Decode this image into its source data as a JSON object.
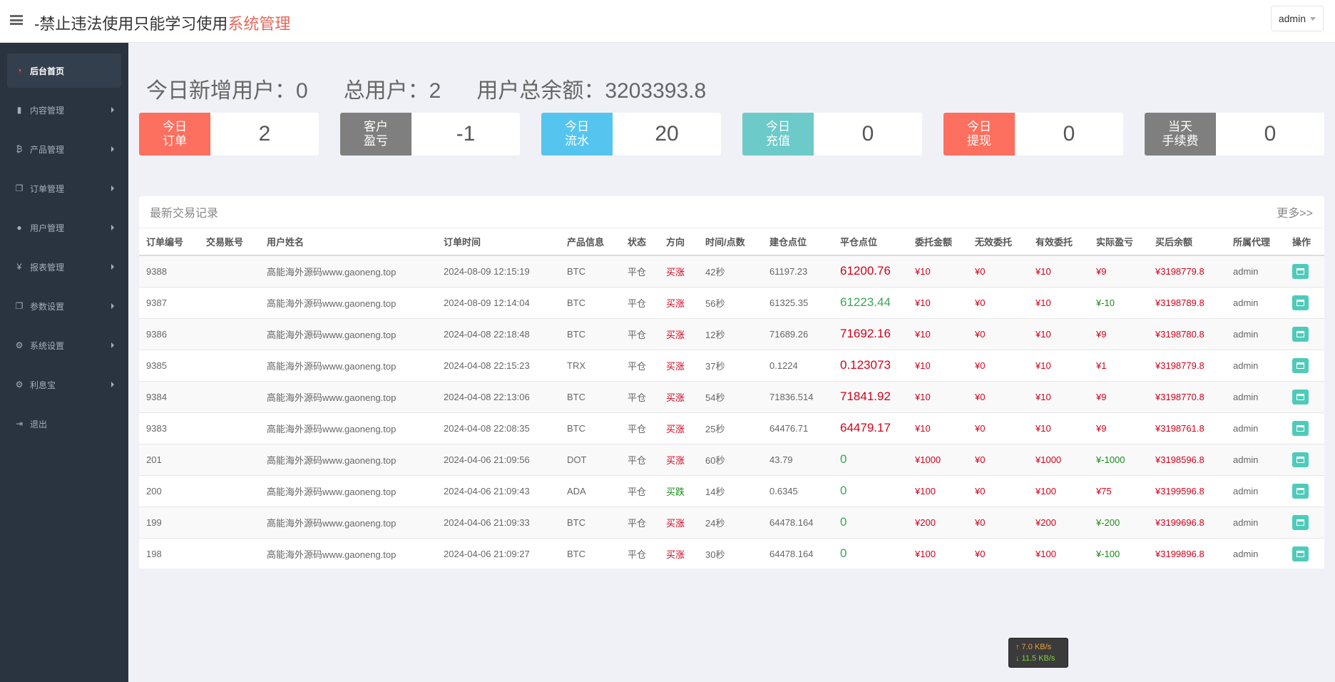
{
  "header": {
    "title_prefix": "-禁止违法使用只能学习使用",
    "title_accent": "系统管理",
    "user": "admin"
  },
  "sidebar": {
    "items": [
      {
        "label": "后台首页",
        "icon": "dashboard-icon",
        "glyph": "◔",
        "active": true,
        "arrow": false
      },
      {
        "label": "内容管理",
        "icon": "book-icon",
        "glyph": "▮",
        "arrow": true
      },
      {
        "label": "产品管理",
        "icon": "bitcoin-icon",
        "glyph": "₿",
        "arrow": true
      },
      {
        "label": "订单管理",
        "icon": "copy-icon",
        "glyph": "❐",
        "arrow": true
      },
      {
        "label": "用户管理",
        "icon": "user-icon",
        "glyph": "●",
        "arrow": true
      },
      {
        "label": "报表管理",
        "icon": "yen-icon",
        "glyph": "¥",
        "arrow": true
      },
      {
        "label": "参数设置",
        "icon": "copy-icon",
        "glyph": "❐",
        "arrow": true
      },
      {
        "label": "系统设置",
        "icon": "gears-icon",
        "glyph": "⚙",
        "arrow": true
      },
      {
        "label": "利息宝",
        "icon": "gears-icon",
        "glyph": "⚙",
        "arrow": true
      },
      {
        "label": "退出",
        "icon": "sign-out-icon",
        "glyph": "⇥",
        "arrow": false
      }
    ]
  },
  "stats": {
    "new_users": "今日新增用户：0",
    "total_users": "总用户：2",
    "total_balance": "用户总余额：3203393.8"
  },
  "cards": [
    {
      "label": "今日\n订单",
      "value": "2",
      "color": "#fd6f5e"
    },
    {
      "label": "客户\n盈亏",
      "value": "-1",
      "color": "#7f7f7f"
    },
    {
      "label": "今日\n流水",
      "value": "20",
      "color": "#55c5f0"
    },
    {
      "label": "今日\n充值",
      "value": "0",
      "color": "#6ccac9"
    },
    {
      "label": "今日\n提现",
      "value": "0",
      "color": "#fd6f5e"
    },
    {
      "label": "当天\n手续费",
      "value": "0",
      "color": "#7f7f7f"
    }
  ],
  "panel": {
    "title": "最新交易记录",
    "more": "更多>>",
    "columns": [
      "订单编号",
      "交易账号",
      "用户姓名",
      "订单时间",
      "产品信息",
      "状态",
      "方向",
      "时间/点数",
      "建仓点位",
      "平仓点位",
      "委托金额",
      "无效委托",
      "有效委托",
      "实际盈亏",
      "买后余额",
      "所属代理",
      "操作"
    ],
    "rows": [
      {
        "id": "9388",
        "account": "",
        "name": "高能海外源码www.gaoneng.top",
        "time": "2024-08-09 12:15:19",
        "product": "BTC",
        "status": "平仓",
        "dir": "买涨",
        "dur": "42秒",
        "open": "61197.23",
        "close": "61200.76",
        "close_color": "red",
        "amount": "¥10",
        "invalid": "¥0",
        "valid": "¥10",
        "pl": "¥9",
        "pl_color": "red",
        "balance": "¥3198779.8",
        "agent": "admin"
      },
      {
        "id": "9387",
        "account": "",
        "name": "高能海外源码www.gaoneng.top",
        "time": "2024-08-09 12:14:04",
        "product": "BTC",
        "status": "平仓",
        "dir": "买涨",
        "dur": "56秒",
        "open": "61325.35",
        "close": "61223.44",
        "close_color": "green",
        "amount": "¥10",
        "invalid": "¥0",
        "valid": "¥10",
        "pl": "¥-10",
        "pl_color": "green",
        "balance": "¥3198789.8",
        "agent": "admin"
      },
      {
        "id": "9386",
        "account": "",
        "name": "高能海外源码www.gaoneng.top",
        "time": "2024-04-08 22:18:48",
        "product": "BTC",
        "status": "平仓",
        "dir": "买涨",
        "dur": "12秒",
        "open": "71689.26",
        "close": "71692.16",
        "close_color": "red",
        "amount": "¥10",
        "invalid": "¥0",
        "valid": "¥10",
        "pl": "¥9",
        "pl_color": "red",
        "balance": "¥3198780.8",
        "agent": "admin"
      },
      {
        "id": "9385",
        "account": "",
        "name": "高能海外源码www.gaoneng.top",
        "time": "2024-04-08 22:15:23",
        "product": "TRX",
        "status": "平仓",
        "dir": "买涨",
        "dur": "37秒",
        "open": "0.1224",
        "close": "0.123073",
        "close_color": "red",
        "amount": "¥10",
        "invalid": "¥0",
        "valid": "¥10",
        "pl": "¥1",
        "pl_color": "red",
        "balance": "¥3198779.8",
        "agent": "admin"
      },
      {
        "id": "9384",
        "account": "",
        "name": "高能海外源码www.gaoneng.top",
        "time": "2024-04-08 22:13:06",
        "product": "BTC",
        "status": "平仓",
        "dir": "买涨",
        "dur": "54秒",
        "open": "71836.514",
        "close": "71841.92",
        "close_color": "red",
        "amount": "¥10",
        "invalid": "¥0",
        "valid": "¥10",
        "pl": "¥9",
        "pl_color": "red",
        "balance": "¥3198770.8",
        "agent": "admin"
      },
      {
        "id": "9383",
        "account": "",
        "name": "高能海外源码www.gaoneng.top",
        "time": "2024-04-08 22:08:35",
        "product": "BTC",
        "status": "平仓",
        "dir": "买涨",
        "dur": "25秒",
        "open": "64476.71",
        "close": "64479.17",
        "close_color": "red",
        "amount": "¥10",
        "invalid": "¥0",
        "valid": "¥10",
        "pl": "¥9",
        "pl_color": "red",
        "balance": "¥3198761.8",
        "agent": "admin"
      },
      {
        "id": "201",
        "account": "",
        "name": "高能海外源码www.gaoneng.top",
        "time": "2024-04-06 21:09:56",
        "product": "DOT",
        "status": "平仓",
        "dir": "买涨",
        "dur": "60秒",
        "open": "43.79",
        "close": "0",
        "close_color": "green",
        "amount": "¥1000",
        "invalid": "¥0",
        "valid": "¥1000",
        "pl": "¥-1000",
        "pl_color": "green",
        "balance": "¥3198596.8",
        "agent": "admin"
      },
      {
        "id": "200",
        "account": "",
        "name": "高能海外源码www.gaoneng.top",
        "time": "2024-04-06 21:09:43",
        "product": "ADA",
        "status": "平仓",
        "dir": "买跌",
        "dir_color": "green",
        "dur": "14秒",
        "open": "0.6345",
        "close": "0",
        "close_color": "green",
        "amount": "¥100",
        "invalid": "¥0",
        "valid": "¥100",
        "pl": "¥75",
        "pl_color": "red",
        "balance": "¥3199596.8",
        "agent": "admin"
      },
      {
        "id": "199",
        "account": "",
        "name": "高能海外源码www.gaoneng.top",
        "time": "2024-04-06 21:09:33",
        "product": "BTC",
        "status": "平仓",
        "dir": "买涨",
        "dur": "24秒",
        "open": "64478.164",
        "close": "0",
        "close_color": "green",
        "amount": "¥200",
        "invalid": "¥0",
        "valid": "¥200",
        "pl": "¥-200",
        "pl_color": "green",
        "balance": "¥3199696.8",
        "agent": "admin"
      },
      {
        "id": "198",
        "account": "",
        "name": "高能海外源码www.gaoneng.top",
        "time": "2024-04-06 21:09:27",
        "product": "BTC",
        "status": "平仓",
        "dir": "买涨",
        "dur": "30秒",
        "open": "64478.164",
        "close": "0",
        "close_color": "green",
        "amount": "¥100",
        "invalid": "¥0",
        "valid": "¥100",
        "pl": "¥-100",
        "pl_color": "green",
        "balance": "¥3199896.8",
        "agent": "admin"
      }
    ]
  },
  "netspeed": {
    "up": "↑ 7.0 KB/s",
    "down": "↓ 11.5 KB/s"
  }
}
